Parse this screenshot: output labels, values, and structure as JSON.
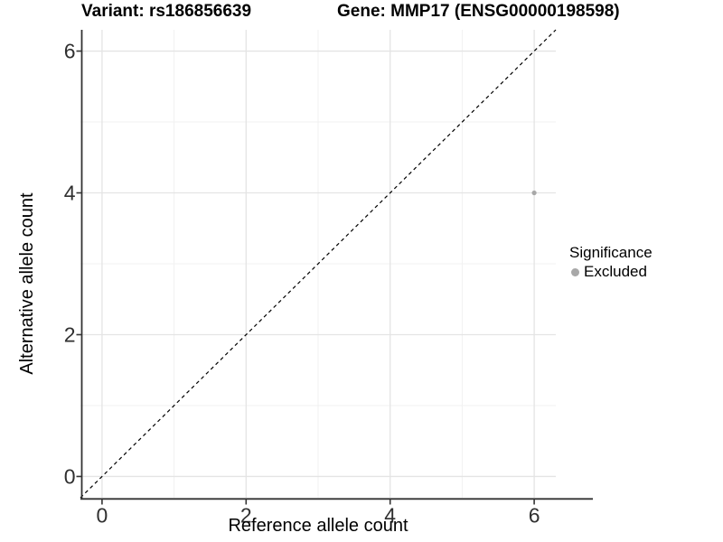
{
  "chart_data": {
    "type": "scatter",
    "title_variant": "Variant: rs186856639",
    "title_gene": "Gene: MMP17 (ENSG00000198598)",
    "xlabel": "Reference allele count",
    "ylabel": "Alternative allele count",
    "xlim": [
      -0.3,
      6.3
    ],
    "ylim": [
      -0.3,
      6.3
    ],
    "x_ticks": [
      0,
      2,
      4,
      6
    ],
    "y_ticks": [
      0,
      2,
      4,
      6
    ],
    "x_minor_ticks": [
      1,
      3,
      5
    ],
    "y_minor_ticks": [
      1,
      3,
      5
    ],
    "grid": "major and minor, light gray on white",
    "series": [
      {
        "name": "Excluded",
        "marker": "circle",
        "color": "#a8a8a8",
        "points": [
          {
            "x": 6,
            "y": 4
          }
        ]
      }
    ],
    "reference_line": {
      "slope": 1,
      "intercept": 0,
      "style": "dashed",
      "color": "#000000"
    },
    "legend": {
      "title": "Significance",
      "position": "right",
      "entries": [
        {
          "label": "Excluded",
          "color": "#a8a8a8",
          "marker": "circle"
        }
      ]
    },
    "colors": {
      "background": "#ffffff",
      "grid_major": "#e4e4e4",
      "grid_minor": "#f1f1f1",
      "axis_line": "#333333",
      "tick_mark": "#333333",
      "tick_text": "#303030",
      "title_text": "#000000"
    }
  }
}
